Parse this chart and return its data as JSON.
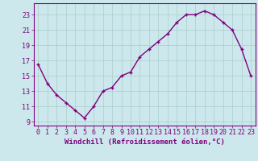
{
  "x": [
    0,
    1,
    2,
    3,
    4,
    5,
    6,
    7,
    8,
    9,
    10,
    11,
    12,
    13,
    14,
    15,
    16,
    17,
    18,
    19,
    20,
    21,
    22,
    23
  ],
  "y": [
    16.5,
    14.0,
    12.5,
    11.5,
    10.5,
    9.5,
    11.0,
    13.0,
    13.5,
    15.0,
    15.5,
    17.5,
    18.5,
    19.5,
    20.5,
    22.0,
    23.0,
    23.0,
    23.5,
    23.0,
    22.0,
    21.0,
    18.5,
    15.0
  ],
  "xlabel": "Windchill (Refroidissement éolien,°C)",
  "line_color": "#800080",
  "marker": "+",
  "bg_color": "#cce8ec",
  "grid_color": "#aacccc",
  "axis_color": "#800080",
  "spine_color": "#800080",
  "xlim": [
    -0.5,
    23.5
  ],
  "ylim": [
    8.5,
    24.5
  ],
  "yticks": [
    9,
    11,
    13,
    15,
    17,
    19,
    21,
    23
  ],
  "xticks": [
    0,
    1,
    2,
    3,
    4,
    5,
    6,
    7,
    8,
    9,
    10,
    11,
    12,
    13,
    14,
    15,
    16,
    17,
    18,
    19,
    20,
    21,
    22,
    23
  ],
  "tick_fontsize": 6,
  "xlabel_fontsize": 6.5,
  "marker_size": 3,
  "linewidth": 1.0
}
